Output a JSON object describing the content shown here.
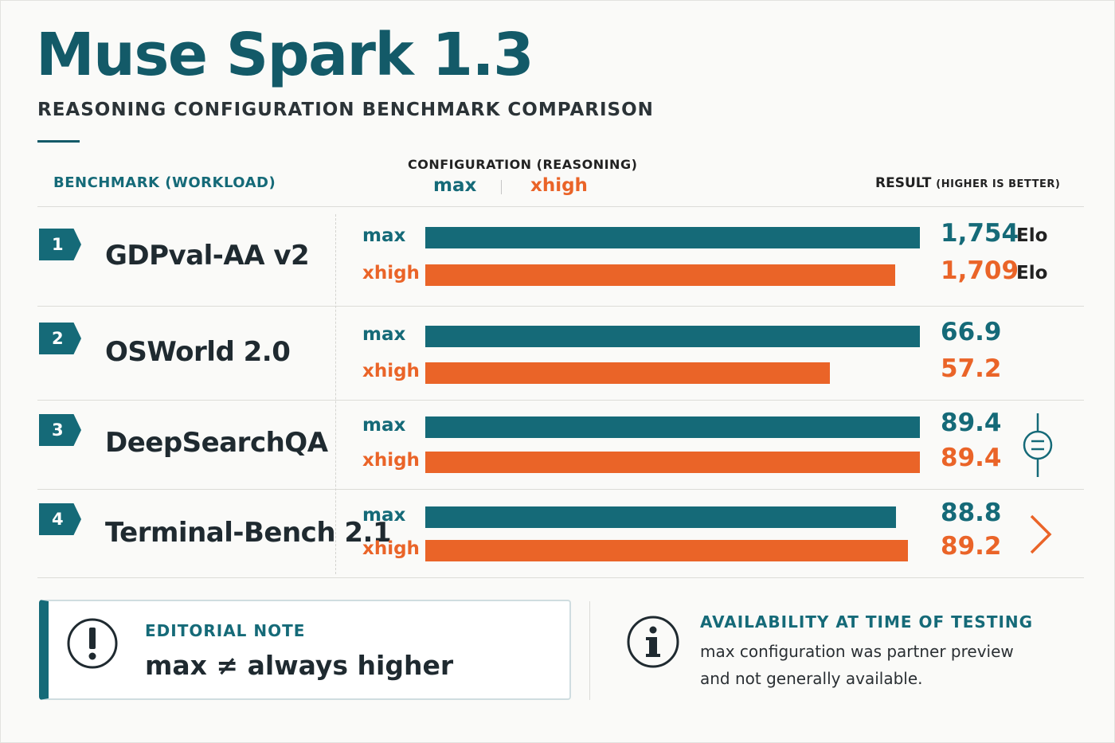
{
  "title": "Muse Spark 1.3",
  "subtitle": "REASONING CONFIGURATION BENCHMARK COMPARISON",
  "header": {
    "benchmark": "BENCHMARK (WORKLOAD)",
    "configuration": "CONFIGURATION (REASONING)",
    "max": "max",
    "xhigh": "xhigh",
    "result": "RESULT",
    "result_note": "(HIGHER IS BETTER)"
  },
  "colors": {
    "max": "#156a78",
    "xhigh": "#ea6428"
  },
  "chart_data": {
    "type": "bar",
    "orientation": "horizontal",
    "grouped_by": "benchmark",
    "series_names": [
      "max",
      "xhigh"
    ],
    "benchmarks": [
      {
        "rank": "1",
        "name": "GDPval-AA v2",
        "unit": "Elo",
        "max": {
          "label": "max",
          "value": 1754,
          "display": "1,754"
        },
        "xhigh": {
          "label": "xhigh",
          "value": 1709,
          "display": "1,709"
        },
        "scale_max": 1754
      },
      {
        "rank": "2",
        "name": "OSWorld 2.0",
        "unit": "",
        "max": {
          "label": "max",
          "value": 66.9,
          "display": "66.9"
        },
        "xhigh": {
          "label": "xhigh",
          "value": 57.2,
          "display": "57.2"
        },
        "scale_max": 66.9,
        "icon": ""
      },
      {
        "rank": "3",
        "name": "DeepSearchQA",
        "unit": "",
        "max": {
          "label": "max",
          "value": 89.4,
          "display": "89.4"
        },
        "xhigh": {
          "label": "xhigh",
          "value": 89.4,
          "display": "89.4"
        },
        "scale_max": 89.4,
        "icon": "equal-icon"
      },
      {
        "rank": "4",
        "name": "Terminal-Bench 2.1",
        "unit": "",
        "max": {
          "label": "max",
          "value": 88.8,
          "display": "88.8"
        },
        "xhigh": {
          "label": "xhigh",
          "value": 89.2,
          "display": "89.2"
        },
        "scale_max": 89.2,
        "icon": "chevron-right-icon"
      }
    ]
  },
  "editorial_note": {
    "title": "EDITORIAL NOTE",
    "body": "max ≠ always higher",
    "icon": "exclamation-icon"
  },
  "availability": {
    "title": "AVAILABILITY AT TIME OF TESTING",
    "lines": [
      "max configuration was partner preview",
      "and not generally available."
    ],
    "icon": "info-icon"
  }
}
